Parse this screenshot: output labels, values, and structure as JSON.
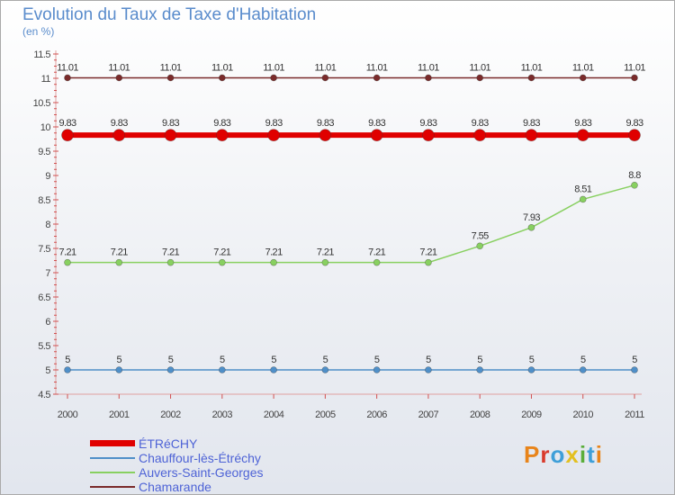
{
  "title": "Evolution du Taux de Taxe d'Habitation",
  "subtitle": "(en %)",
  "logo": {
    "text": "Proxiti",
    "colors": [
      "#e8841a",
      "#d93a2b",
      "#3f9fd8",
      "#e3c020",
      "#5aae3a",
      "#3f9fd8",
      "#e8841a"
    ]
  },
  "chart_data": {
    "type": "line",
    "title": "Evolution du Taux de Taxe d'Habitation",
    "subtitle": "(en %)",
    "xlabel": "",
    "ylabel": "",
    "x": [
      "2000",
      "2001",
      "2002",
      "2003",
      "2004",
      "2005",
      "2006",
      "2007",
      "2008",
      "2009",
      "2010",
      "2011"
    ],
    "ylim": [
      4.5,
      11.5
    ],
    "yticks": [
      "4.5",
      "5",
      "5.5",
      "6",
      "6.5",
      "7",
      "7.5",
      "8",
      "8.5",
      "9",
      "9.5",
      "10",
      "10.5",
      "11",
      "11.5"
    ],
    "grid": false,
    "legend_position": "bottom-left",
    "series": [
      {
        "name": "ÉTRéCHY",
        "color": "#e00000",
        "values": [
          9.83,
          9.83,
          9.83,
          9.83,
          9.83,
          9.83,
          9.83,
          9.83,
          9.83,
          9.83,
          9.83,
          9.83
        ],
        "labels": [
          "9.83",
          "9.83",
          "9.83",
          "9.83",
          "9.83",
          "9.83",
          "9.83",
          "9.83",
          "9.83",
          "9.83",
          "9.83",
          "9.83"
        ]
      },
      {
        "name": "Chauffour-lès-Étréchy",
        "color": "#4f8fc8",
        "values": [
          5,
          5,
          5,
          5,
          5,
          5,
          5,
          5,
          5,
          5,
          5,
          5
        ],
        "labels": [
          "5",
          "5",
          "5",
          "5",
          "5",
          "5",
          "5",
          "5",
          "5",
          "5",
          "5",
          "5"
        ]
      },
      {
        "name": "Auvers-Saint-Georges",
        "color": "#88d060",
        "values": [
          7.21,
          7.21,
          7.21,
          7.21,
          7.21,
          7.21,
          7.21,
          7.21,
          7.55,
          7.93,
          8.51,
          8.8
        ],
        "labels": [
          "7.21",
          "7.21",
          "7.21",
          "7.21",
          "7.21",
          "7.21",
          "7.21",
          "7.21",
          "7.55",
          "7.93",
          "8.51",
          "8.8"
        ]
      },
      {
        "name": "Chamarande",
        "color": "#7a2b2b",
        "values": [
          11.01,
          11.01,
          11.01,
          11.01,
          11.01,
          11.01,
          11.01,
          11.01,
          11.01,
          11.01,
          11.01,
          11.01
        ],
        "labels": [
          "11.01",
          "11.01",
          "11.01",
          "11.01",
          "11.01",
          "11.01",
          "11.01",
          "11.01",
          "11.01",
          "11.01",
          "11.01",
          "11.01"
        ]
      }
    ]
  }
}
